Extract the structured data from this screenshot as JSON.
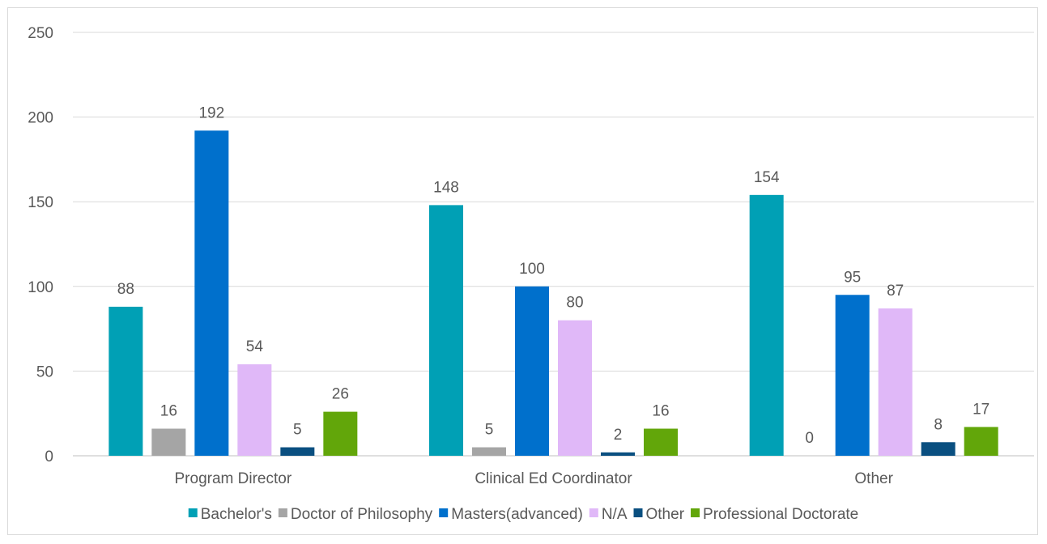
{
  "chart_data": {
    "type": "bar",
    "title": "",
    "xlabel": "",
    "ylabel": "",
    "ylim": [
      0,
      250
    ],
    "yticks": [
      0,
      50,
      100,
      150,
      200,
      250
    ],
    "grid": true,
    "legend_position": "bottom",
    "categories": [
      "Program Director",
      "Clinical Ed Coordinator",
      "Other"
    ],
    "series": [
      {
        "name": "Bachelor's",
        "color": "#00a0b5",
        "values": [
          88,
          148,
          154
        ]
      },
      {
        "name": "Doctor of Philosophy",
        "color": "#a5a5a5",
        "values": [
          16,
          5,
          0
        ]
      },
      {
        "name": "Masters(advanced)",
        "color": "#0070cc",
        "values": [
          192,
          100,
          95
        ]
      },
      {
        "name": "N/A",
        "color": "#e0b8f8",
        "values": [
          54,
          80,
          87
        ]
      },
      {
        "name": "Other",
        "color": "#0a4f80",
        "values": [
          5,
          2,
          8
        ]
      },
      {
        "name": "Professional Doctorate",
        "color": "#62a60a",
        "values": [
          26,
          16,
          17
        ]
      }
    ]
  }
}
